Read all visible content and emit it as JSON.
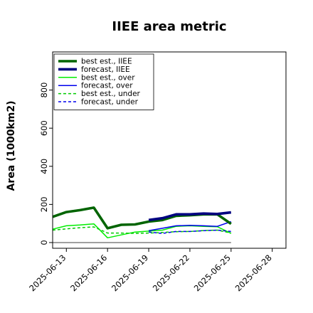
{
  "chart_data": {
    "type": "line",
    "title": "IIEE area metric",
    "xlabel": "",
    "ylabel": "Area (1000km2)",
    "xlim": [
      "2025-06-12",
      "2025-06-29"
    ],
    "ylim": [
      -30,
      1000
    ],
    "yticks": [
      0,
      200,
      400,
      600,
      800
    ],
    "xticks": [
      "2025-06-13",
      "2025-06-16",
      "2025-06-19",
      "2025-06-22",
      "2025-06-25",
      "2025-06-28"
    ],
    "highlighted_xtick": "2025-06-19",
    "highlight_color": "#228b22",
    "grid": false,
    "legend_position": "upper-left",
    "reference_line": {
      "value": 0,
      "from": "2025-06-12",
      "to": "2025-06-25",
      "color": "#808080"
    },
    "series": [
      {
        "name": "best est., IIEE",
        "color": "#006400",
        "style": "solid",
        "width": "thick",
        "x": [
          "2025-06-12",
          "2025-06-13",
          "2025-06-14",
          "2025-06-15",
          "2025-06-16",
          "2025-06-17",
          "2025-06-18",
          "2025-06-19",
          "2025-06-20",
          "2025-06-21",
          "2025-06-22",
          "2025-06-23",
          "2025-06-24",
          "2025-06-25"
        ],
        "y": [
          135,
          160,
          170,
          183,
          75,
          93,
          95,
          110,
          118,
          140,
          143,
          148,
          148,
          98
        ]
      },
      {
        "name": "forecast, IIEE",
        "color": "#000080",
        "style": "solid",
        "width": "thick",
        "x": [
          "2025-06-19",
          "2025-06-20",
          "2025-06-21",
          "2025-06-22",
          "2025-06-23",
          "2025-06-24",
          "2025-06-25"
        ],
        "y": [
          118,
          128,
          148,
          148,
          152,
          150,
          158
        ]
      },
      {
        "name": "best est., over",
        "color": "#00ee00",
        "style": "solid",
        "width": "thin",
        "x": [
          "2025-06-12",
          "2025-06-13",
          "2025-06-14",
          "2025-06-15",
          "2025-06-16",
          "2025-06-17",
          "2025-06-18",
          "2025-06-19",
          "2025-06-20",
          "2025-06-21",
          "2025-06-22",
          "2025-06-23",
          "2025-06-24",
          "2025-06-25"
        ],
        "y": [
          70,
          88,
          92,
          98,
          25,
          40,
          55,
          60,
          65,
          85,
          88,
          85,
          83,
          48
        ]
      },
      {
        "name": "forecast, over",
        "color": "#0000ee",
        "style": "solid",
        "width": "thin",
        "x": [
          "2025-06-19",
          "2025-06-20",
          "2025-06-21",
          "2025-06-22",
          "2025-06-23",
          "2025-06-24",
          "2025-06-25"
        ],
        "y": [
          62,
          75,
          88,
          90,
          88,
          85,
          110
        ]
      },
      {
        "name": "best est., under",
        "color": "#00cc00",
        "style": "dashed",
        "width": "thin",
        "x": [
          "2025-06-12",
          "2025-06-13",
          "2025-06-14",
          "2025-06-15",
          "2025-06-16",
          "2025-06-17",
          "2025-06-18",
          "2025-06-19",
          "2025-06-20",
          "2025-06-21",
          "2025-06-22",
          "2025-06-23",
          "2025-06-24",
          "2025-06-25"
        ],
        "y": [
          65,
          72,
          78,
          82,
          50,
          50,
          48,
          50,
          53,
          57,
          58,
          63,
          65,
          50
        ]
      },
      {
        "name": "forecast, under",
        "color": "#0000ee",
        "style": "dashed",
        "width": "thin",
        "x": [
          "2025-06-19",
          "2025-06-20",
          "2025-06-21",
          "2025-06-22",
          "2025-06-23",
          "2025-06-24",
          "2025-06-25"
        ],
        "y": [
          55,
          48,
          58,
          58,
          62,
          65,
          58
        ]
      }
    ]
  }
}
